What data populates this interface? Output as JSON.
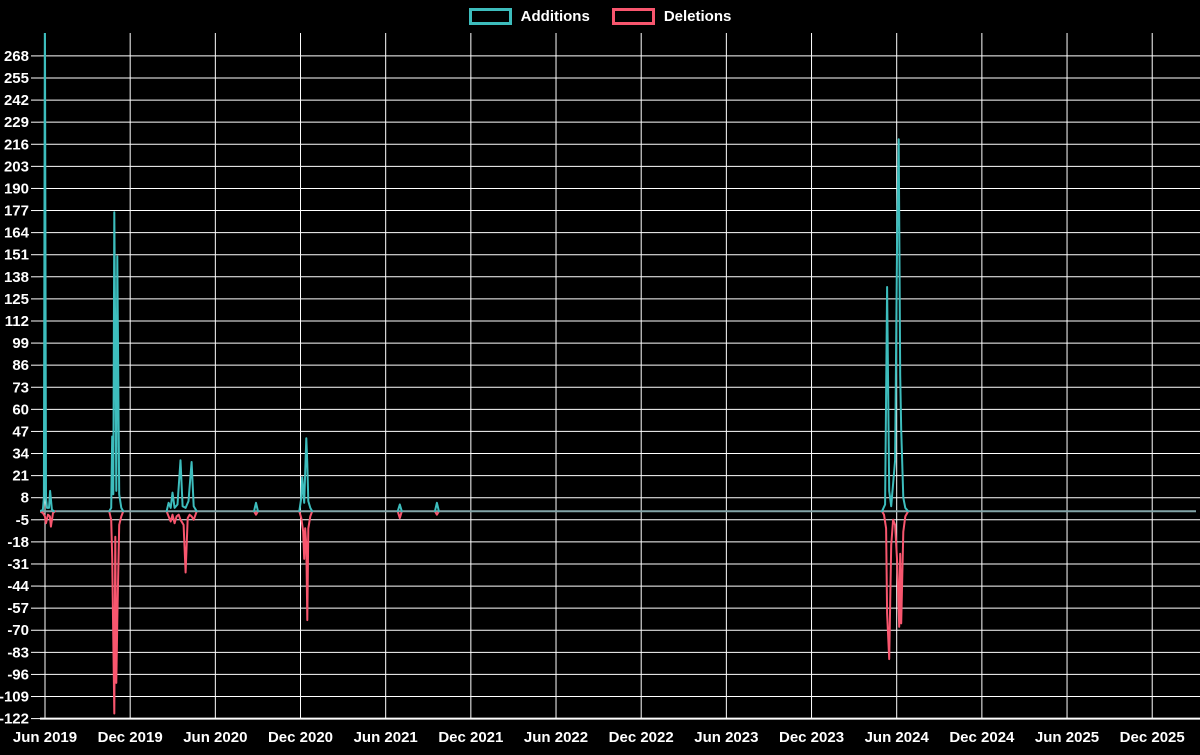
{
  "background": "#000000",
  "legend": {
    "items": [
      {
        "label": "Additions",
        "color": "#3dbdbd"
      },
      {
        "label": "Deletions",
        "color": "#f8566e"
      }
    ]
  },
  "chart_data": {
    "type": "line",
    "title": "",
    "xlabel": "",
    "ylabel": "",
    "grid": true,
    "legend_position": "top-center",
    "x_axis": {
      "tick_labels": [
        "Jun 2019",
        "Dec 2019",
        "Jun 2020",
        "Dec 2020",
        "Jun 2021",
        "Dec 2021",
        "Jun 2022",
        "Dec 2022",
        "Jun 2023",
        "Dec 2023",
        "Jun 2024",
        "Dec 2024",
        "Jun 2025",
        "Dec 2025"
      ],
      "tick_years": [
        2019.4583,
        2019.9583,
        2020.4583,
        2020.9583,
        2021.4583,
        2021.9583,
        2022.4583,
        2022.9583,
        2023.4583,
        2023.9583,
        2024.4583,
        2024.9583,
        2025.4583,
        2025.9583
      ],
      "range_years": [
        2019.429,
        2026.25
      ]
    },
    "y_axis": {
      "ticks": [
        268,
        255,
        242,
        229,
        216,
        203,
        190,
        177,
        164,
        151,
        138,
        125,
        112,
        99,
        86,
        73,
        60,
        47,
        34,
        21,
        8,
        -5,
        -18,
        -31,
        -44,
        -57,
        -70,
        -83,
        -96,
        -109,
        -122
      ],
      "min": -122,
      "max": 268,
      "step": 13,
      "clip_max_visible": 282
    },
    "baseline": {
      "value": 0,
      "color": "#83a5a8"
    },
    "gridline_color": "#ffffff",
    "series": [
      {
        "name": "Additions",
        "color": "#3dbdbd",
        "clusters": [
          [
            [
              2019.429,
              0
            ],
            [
              2019.446,
              1
            ],
            [
              2019.452,
              8
            ],
            [
              2019.458,
              300
            ],
            [
              2019.464,
              8
            ],
            [
              2019.47,
              2
            ],
            [
              2019.482,
              2
            ],
            [
              2019.488,
              12
            ],
            [
              2019.499,
              1
            ],
            [
              2019.511,
              0
            ]
          ],
          [
            [
              2019.835,
              0
            ],
            [
              2019.847,
              2
            ],
            [
              2019.853,
              44
            ],
            [
              2019.859,
              10
            ],
            [
              2019.865,
              176
            ],
            [
              2019.877,
              12
            ],
            [
              2019.883,
              150
            ],
            [
              2019.894,
              10
            ],
            [
              2019.906,
              2
            ],
            [
              2019.918,
              0
            ]
          ],
          [
            [
              2020.172,
              0
            ],
            [
              2020.184,
              5
            ],
            [
              2020.196,
              2
            ],
            [
              2020.207,
              11
            ],
            [
              2020.219,
              2
            ],
            [
              2020.236,
              4
            ],
            [
              2020.254,
              30
            ],
            [
              2020.266,
              3
            ],
            [
              2020.284,
              2
            ],
            [
              2020.301,
              6
            ],
            [
              2020.319,
              29
            ],
            [
              2020.331,
              3
            ],
            [
              2020.349,
              0
            ]
          ],
          [
            [
              2020.685,
              0
            ],
            [
              2020.697,
              5
            ],
            [
              2020.709,
              0
            ]
          ],
          [
            [
              2020.951,
              0
            ],
            [
              2020.963,
              8
            ],
            [
              2020.968,
              20
            ],
            [
              2020.98,
              5
            ],
            [
              2020.992,
              43
            ],
            [
              2020.998,
              28
            ],
            [
              2021.004,
              6
            ],
            [
              2021.016,
              2
            ],
            [
              2021.027,
              0
            ]
          ],
          [
            [
              2021.529,
              0
            ],
            [
              2021.541,
              4
            ],
            [
              2021.553,
              0
            ]
          ],
          [
            [
              2021.747,
              0
            ],
            [
              2021.759,
              5
            ],
            [
              2021.771,
              0
            ]
          ],
          [
            [
              2024.372,
              0
            ],
            [
              2024.39,
              4
            ],
            [
              2024.402,
              132
            ],
            [
              2024.414,
              12
            ],
            [
              2024.426,
              3
            ],
            [
              2024.449,
              30
            ],
            [
              2024.461,
              167
            ],
            [
              2024.47,
              219
            ],
            [
              2024.479,
              80
            ],
            [
              2024.485,
              48
            ],
            [
              2024.497,
              8
            ],
            [
              2024.509,
              2
            ],
            [
              2024.526,
              0
            ]
          ]
        ]
      },
      {
        "name": "Deletions",
        "color": "#f8566e",
        "clusters": [
          [
            [
              2019.429,
              0
            ],
            [
              2019.446,
              -1
            ],
            [
              2019.458,
              -3
            ],
            [
              2019.464,
              -7
            ],
            [
              2019.476,
              -2
            ],
            [
              2019.487,
              -3
            ],
            [
              2019.493,
              -9
            ],
            [
              2019.505,
              -1
            ],
            [
              2019.517,
              0
            ]
          ],
          [
            [
              2019.835,
              0
            ],
            [
              2019.847,
              -5
            ],
            [
              2019.853,
              -27
            ],
            [
              2019.865,
              -119
            ],
            [
              2019.871,
              -15
            ],
            [
              2019.877,
              -101
            ],
            [
              2019.883,
              -64
            ],
            [
              2019.894,
              -8
            ],
            [
              2019.906,
              -3
            ],
            [
              2019.918,
              0
            ]
          ],
          [
            [
              2020.172,
              0
            ],
            [
              2020.184,
              -3
            ],
            [
              2020.196,
              -6
            ],
            [
              2020.207,
              -2
            ],
            [
              2020.219,
              -7
            ],
            [
              2020.231,
              -3
            ],
            [
              2020.243,
              -2
            ],
            [
              2020.254,
              -5
            ],
            [
              2020.272,
              -8
            ],
            [
              2020.284,
              -36
            ],
            [
              2020.296,
              -4
            ],
            [
              2020.307,
              -2
            ],
            [
              2020.319,
              -3
            ],
            [
              2020.331,
              -5
            ],
            [
              2020.349,
              0
            ]
          ],
          [
            [
              2020.685,
              0
            ],
            [
              2020.697,
              -2
            ],
            [
              2020.709,
              0
            ]
          ],
          [
            [
              2020.951,
              0
            ],
            [
              2020.963,
              -4
            ],
            [
              2020.974,
              -12
            ],
            [
              2020.98,
              -28
            ],
            [
              2020.986,
              -10
            ],
            [
              2020.992,
              -20
            ],
            [
              2020.998,
              -64
            ],
            [
              2021.004,
              -10
            ],
            [
              2021.016,
              -3
            ],
            [
              2021.027,
              0
            ]
          ],
          [
            [
              2021.529,
              0
            ],
            [
              2021.541,
              -4
            ],
            [
              2021.553,
              0
            ]
          ],
          [
            [
              2021.747,
              0
            ],
            [
              2021.759,
              -2
            ],
            [
              2021.771,
              0
            ]
          ],
          [
            [
              2024.372,
              0
            ],
            [
              2024.384,
              -2
            ],
            [
              2024.396,
              -10
            ],
            [
              2024.402,
              -60
            ],
            [
              2024.414,
              -87
            ],
            [
              2024.426,
              -20
            ],
            [
              2024.437,
              -5
            ],
            [
              2024.449,
              -8
            ],
            [
              2024.461,
              -30
            ],
            [
              2024.473,
              -68
            ],
            [
              2024.479,
              -25
            ],
            [
              2024.485,
              -66
            ],
            [
              2024.497,
              -12
            ],
            [
              2024.509,
              -3
            ],
            [
              2024.526,
              0
            ]
          ]
        ]
      }
    ]
  }
}
